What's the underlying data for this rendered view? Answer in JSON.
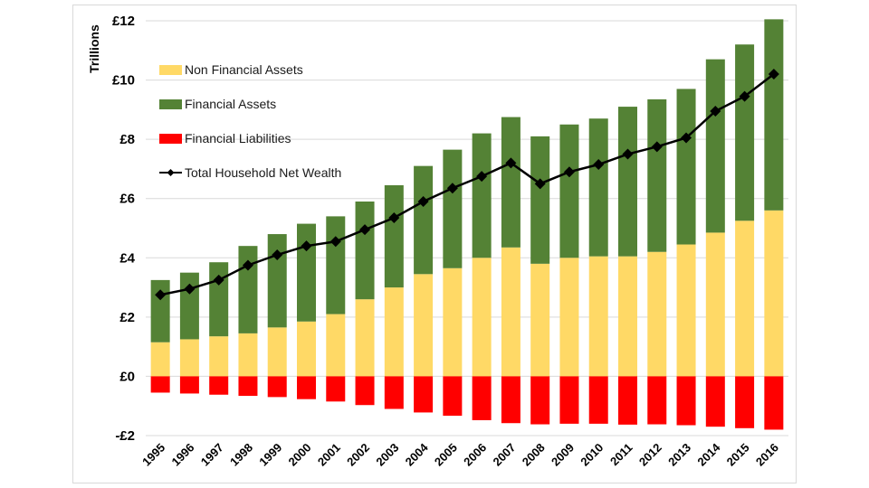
{
  "chart_data": {
    "type": "bar",
    "ylabel": "Trillions",
    "ylim": [
      -2,
      12
    ],
    "yticks": [
      -2,
      0,
      2,
      4,
      6,
      8,
      10,
      12
    ],
    "ytick_labels": [
      "-£2",
      "£0",
      "£2",
      "£4",
      "£6",
      "£8",
      "£10",
      "£12"
    ],
    "grid": true,
    "stacked": true,
    "legend_position": "top-left",
    "categories": [
      "1995",
      "1996",
      "1997",
      "1998",
      "1999",
      "2000",
      "2001",
      "2002",
      "2003",
      "2004",
      "2005",
      "2006",
      "2007",
      "2008",
      "2009",
      "2010",
      "2011",
      "2012",
      "2013",
      "2014",
      "2015",
      "2016"
    ],
    "series": [
      {
        "name": "Non Financial Assets",
        "kind": "bar",
        "color": "#ffd966",
        "values": [
          1.15,
          1.25,
          1.35,
          1.45,
          1.65,
          1.85,
          2.1,
          2.6,
          3.0,
          3.45,
          3.65,
          4.0,
          4.35,
          3.8,
          4.0,
          4.05,
          4.05,
          4.2,
          4.45,
          4.85,
          5.25,
          5.6
        ]
      },
      {
        "name": "Financial Assets",
        "kind": "bar",
        "color": "#548235",
        "values": [
          2.1,
          2.25,
          2.5,
          2.95,
          3.15,
          3.3,
          3.3,
          3.3,
          3.45,
          3.65,
          4.0,
          4.2,
          4.4,
          4.3,
          4.5,
          4.65,
          5.05,
          5.15,
          5.25,
          5.85,
          5.95,
          6.45
        ]
      },
      {
        "name": "Financial Liabilities",
        "kind": "bar",
        "color": "#ff0000",
        "values": [
          -0.55,
          -0.58,
          -0.62,
          -0.66,
          -0.7,
          -0.77,
          -0.85,
          -0.97,
          -1.1,
          -1.22,
          -1.33,
          -1.48,
          -1.58,
          -1.62,
          -1.6,
          -1.6,
          -1.63,
          -1.62,
          -1.65,
          -1.7,
          -1.75,
          -1.8
        ]
      },
      {
        "name": "Total Household Net Wealth",
        "kind": "line",
        "color": "#000000",
        "values": [
          2.75,
          2.95,
          3.25,
          3.75,
          4.1,
          4.4,
          4.55,
          4.95,
          5.35,
          5.9,
          6.35,
          6.75,
          7.2,
          6.5,
          6.9,
          7.15,
          7.5,
          7.75,
          8.05,
          8.95,
          9.45,
          10.2
        ]
      }
    ]
  }
}
